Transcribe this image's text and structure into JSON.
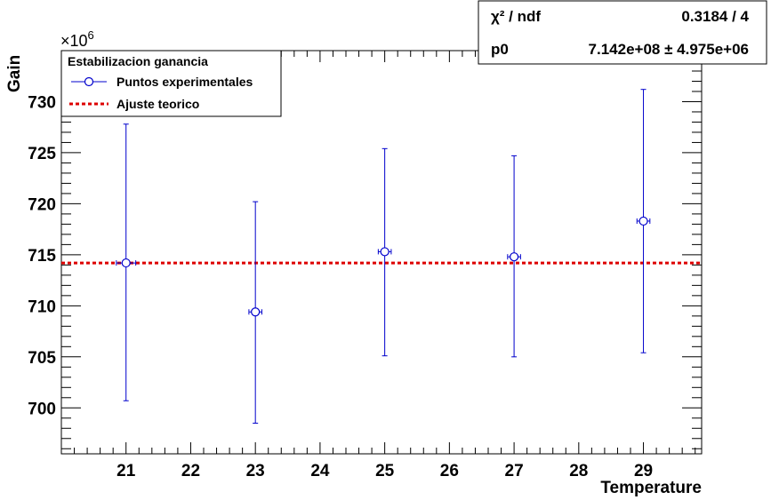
{
  "chart_data": {
    "type": "scatter",
    "xlabel": "Temperature",
    "ylabel": "Gain",
    "y_multiplier_label": "×10",
    "y_multiplier_exponent": "6",
    "xlim": [
      20.0,
      29.9
    ],
    "ylim": [
      695.5,
      735.0
    ],
    "x_ticks": [
      21,
      22,
      23,
      24,
      25,
      26,
      27,
      28,
      29
    ],
    "y_ticks": [
      700,
      705,
      710,
      715,
      720,
      725,
      730
    ],
    "legend": {
      "title": "Estabilizacion ganancia",
      "entries": [
        "Puntos experimentales",
        "Ajuste teorico"
      ]
    },
    "series": [
      {
        "name": "Puntos experimentales",
        "color": "#0000cc",
        "points": [
          {
            "x": 21,
            "y": 714.2,
            "xerr": 0.15,
            "y_low": 700.7,
            "y_high": 727.8
          },
          {
            "x": 23,
            "y": 709.4,
            "xerr": 0.1,
            "y_low": 698.5,
            "y_high": 720.2
          },
          {
            "x": 25,
            "y": 715.3,
            "xerr": 0.1,
            "y_low": 705.1,
            "y_high": 725.4
          },
          {
            "x": 27,
            "y": 714.8,
            "xerr": 0.1,
            "y_low": 705.0,
            "y_high": 724.7
          },
          {
            "x": 29,
            "y": 718.3,
            "xerr": 0.1,
            "y_low": 705.4,
            "y_high": 731.2
          }
        ]
      },
      {
        "name": "Ajuste teorico",
        "color": "#dd0000",
        "fit_value": 714.2
      }
    ],
    "stats": {
      "chi2_label": "χ² / ndf",
      "chi2_value": "0.3184 / 4",
      "p0_label": "p0",
      "p0_value": "7.142e+08 ± 4.975e+06"
    }
  }
}
